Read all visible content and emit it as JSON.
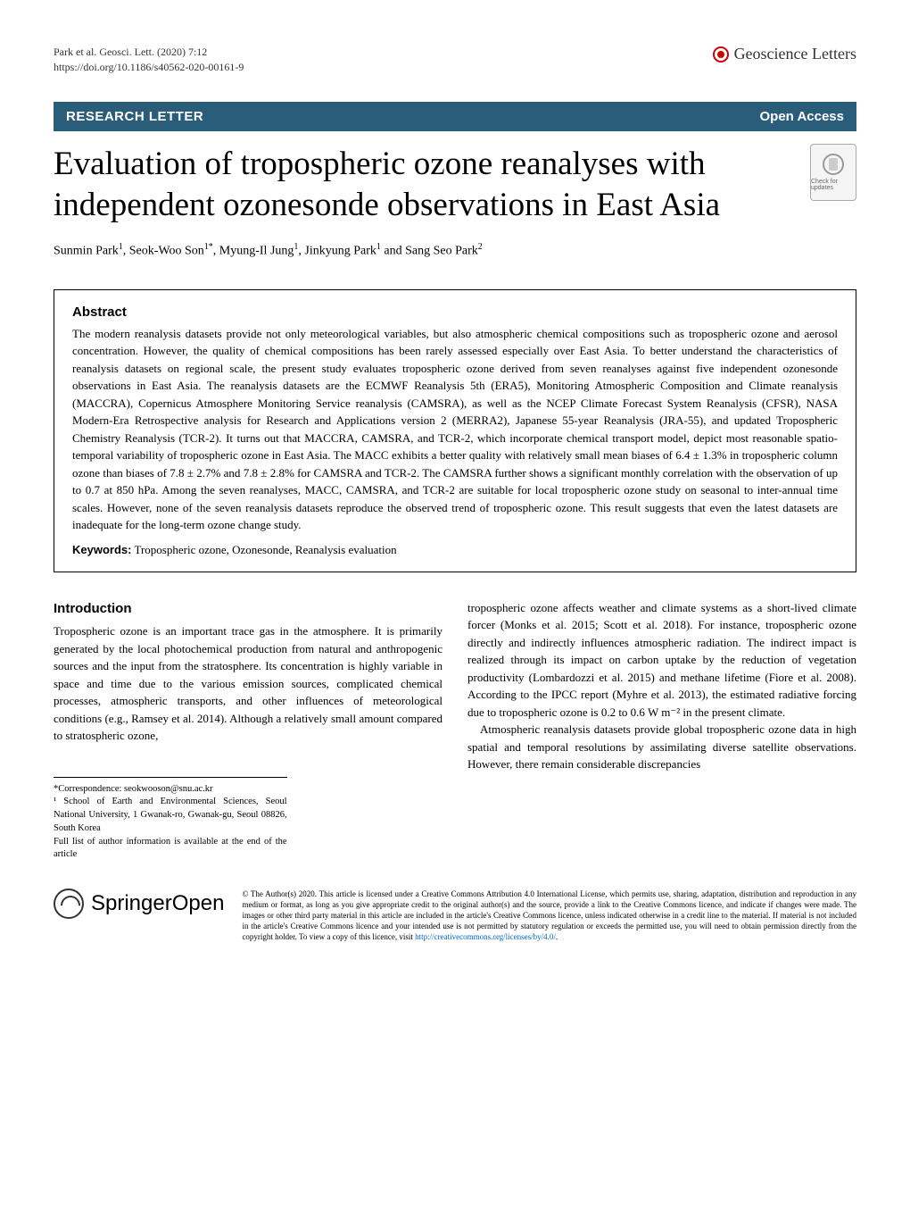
{
  "header": {
    "citation_line1": "Park et al. Geosci. Lett.     (2020) 7:12",
    "citation_line2": "https://doi.org/10.1186/s40562-020-00161-9",
    "journal_name": "Geoscience Letters"
  },
  "section": {
    "label": "RESEARCH LETTER",
    "open_access": "Open Access"
  },
  "title": "Evaluation of tropospheric ozone reanalyses with independent ozonesonde observations in East Asia",
  "crossmark": "Check for updates",
  "authors_html": "Sunmin Park<sup>1</sup>, Seok-Woo Son<sup>1*</sup>, Myung-Il Jung<sup>1</sup>, Jinkyung Park<sup>1</sup> and Sang Seo Park<sup>2</sup>",
  "abstract": {
    "heading": "Abstract",
    "text": "The modern reanalysis datasets provide not only meteorological variables, but also atmospheric chemical compositions such as tropospheric ozone and aerosol concentration. However, the quality of chemical compositions has been rarely assessed especially over East Asia. To better understand the characteristics of reanalysis datasets on regional scale, the present study evaluates tropospheric ozone derived from seven reanalyses against five independent ozonesonde observations in East Asia. The reanalysis datasets are the ECMWF Reanalysis 5th (ERA5), Monitoring Atmospheric Composition and Climate reanalysis (MACCRA), Copernicus Atmosphere Monitoring Service reanalysis (CAMSRA), as well as the NCEP Climate Forecast System Reanalysis (CFSR), NASA Modern-Era Retrospective analysis for Research and Applications version 2 (MERRA2), Japanese 55-year Reanalysis (JRA-55), and updated Tropospheric Chemistry Reanalysis (TCR-2). It turns out that MACCRA, CAMSRA, and TCR-2, which incorporate chemical transport model, depict most reasonable spatio-temporal variability of tropospheric ozone in East Asia. The MACC exhibits a better quality with relatively small mean biases of 6.4 ± 1.3% in tropospheric column ozone than biases of 7.8 ± 2.7% and 7.8 ± 2.8% for CAMSRA and TCR-2. The CAMSRA further shows a significant monthly correlation with the observation of up to 0.7 at 850 hPa. Among the seven reanalyses, MACC, CAMSRA, and TCR-2 are suitable for local tropospheric ozone study on seasonal to inter-annual time scales. However, none of the seven reanalysis datasets reproduce the observed trend of tropospheric ozone. This result suggests that even the latest datasets are inadequate for the long-term ozone change study.",
    "keywords_label": "Keywords:",
    "keywords": " Tropospheric ozone, Ozonesonde, Reanalysis evaluation"
  },
  "body": {
    "intro_heading": "Introduction",
    "left_p1": "Tropospheric ozone is an important trace gas in the atmosphere. It is primarily generated by the local photochemical production from natural and anthropogenic sources and the input from the stratosphere. Its concentration is highly variable in space and time due to the various emission sources, complicated chemical processes, atmospheric transports, and other influences of meteorological conditions (e.g., Ramsey et al. 2014). Although a relatively small amount compared to stratospheric ozone,",
    "right_p1": "tropospheric ozone affects weather and climate systems as a short-lived climate forcer (Monks et al. 2015; Scott et al. 2018). For instance, tropospheric ozone directly and indirectly influences atmospheric radiation. The indirect impact is realized through its impact on carbon uptake by the reduction of vegetation productivity (Lombardozzi et al. 2015) and methane lifetime (Fiore et al. 2008). According to the IPCC report (Myhre et al. 2013), the estimated radiative forcing due to tropospheric ozone is 0.2 to 0.6 W m⁻² in the present climate.",
    "right_p2": "Atmospheric reanalysis datasets provide global tropospheric ozone data in high spatial and temporal resolutions by assimilating diverse satellite observations. However, there remain considerable discrepancies"
  },
  "footnotes": {
    "correspondence": "*Correspondence: seokwooson@snu.ac.kr",
    "affiliation": "¹ School of Earth and Environmental Sciences, Seoul National University, 1 Gwanak-ro, Gwanak-gu, Seoul 08826, South Korea",
    "fulllist": "Full list of author information is available at the end of the article"
  },
  "footer": {
    "springer": "SpringerOpen",
    "license": "© The Author(s) 2020. This article is licensed under a Creative Commons Attribution 4.0 International License, which permits use, sharing, adaptation, distribution and reproduction in any medium or format, as long as you give appropriate credit to the original author(s) and the source, provide a link to the Creative Commons licence, and indicate if changes were made. The images or other third party material in this article are included in the article's Creative Commons licence, unless indicated otherwise in a credit line to the material. If material is not included in the article's Creative Commons licence and your intended use is not permitted by statutory regulation or exceeds the permitted use, you will need to obtain permission directly from the copyright holder. To view a copy of this licence, visit ",
    "license_link": "http://creativecommons.org/licenses/by/4.0/",
    "license_period": "."
  }
}
